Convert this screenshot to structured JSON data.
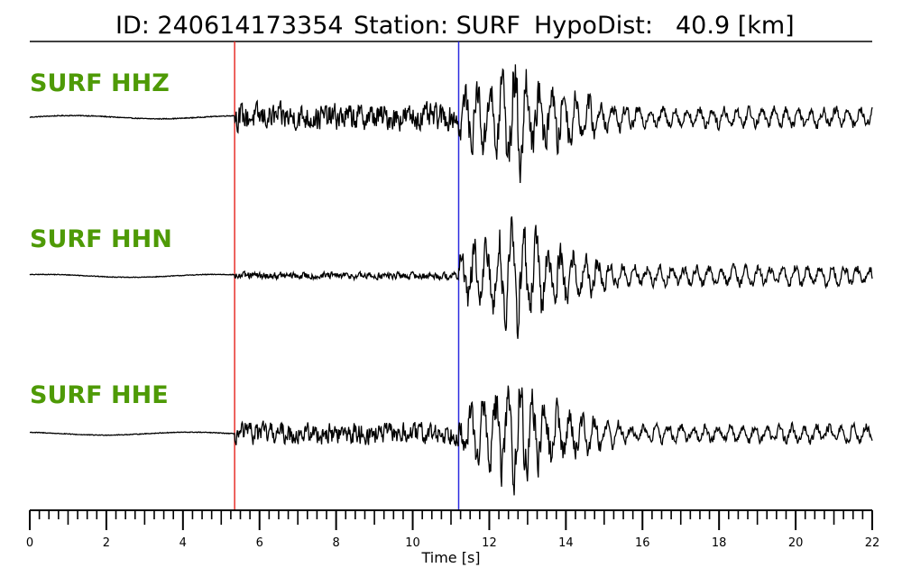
{
  "header": {
    "id_text": "ID: 240614173354",
    "station_text": "Station: SURF",
    "hypodist_text": "HypoDist:",
    "hypodist_value": "40.9 [km]"
  },
  "chart_data": {
    "type": "line",
    "xlabel": "Time [s]",
    "xlim": [
      0,
      22
    ],
    "major_ticks": [
      0,
      2,
      4,
      6,
      8,
      10,
      12,
      14,
      16,
      18,
      20,
      22
    ],
    "minor_tick_step": 0.25,
    "picks": [
      {
        "phase": "P",
        "time": 5.35,
        "color": "#e8302a"
      },
      {
        "phase": "S",
        "time": 11.2,
        "color": "#2a2ae0"
      }
    ],
    "series": [
      {
        "name": "SURF HHZ",
        "label_color": "#4e9a06",
        "pre_noise": 0.02,
        "p_amp": 0.22,
        "s_amp": 0.95
      },
      {
        "name": "SURF HHN",
        "label_color": "#4e9a06",
        "pre_noise": 0.02,
        "p_amp": 0.07,
        "s_amp": 1.0
      },
      {
        "name": "SURF HHE",
        "label_color": "#4e9a06",
        "pre_noise": 0.02,
        "p_amp": 0.2,
        "s_amp": 0.95
      }
    ]
  }
}
